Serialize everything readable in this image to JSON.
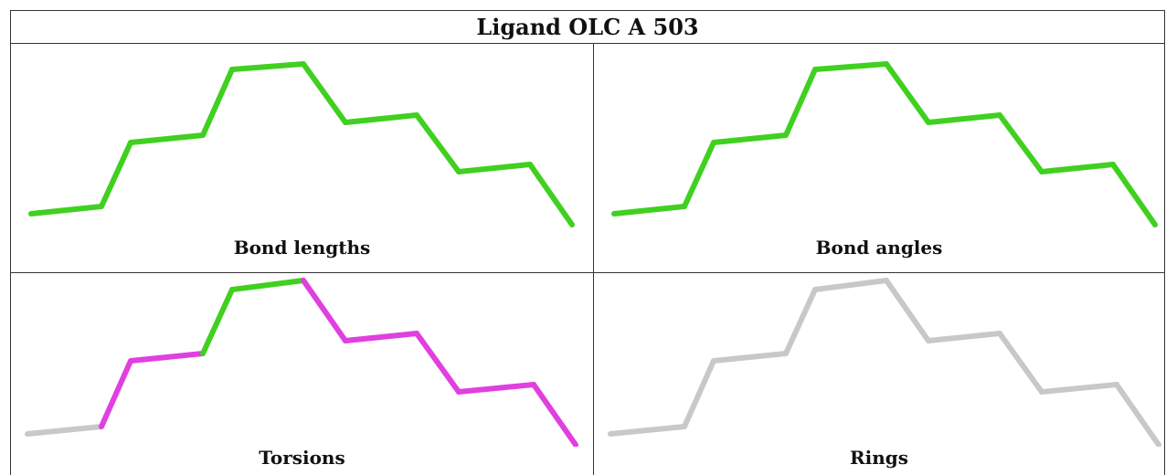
{
  "title": "Ligand OLC A 503",
  "panels": [
    {
      "label": "Bond lengths",
      "bond_colors": [
        "#40d020",
        "#40d020",
        "#40d020",
        "#40d020",
        "#40d020",
        "#40d020",
        "#40d020",
        "#40d020",
        "#40d020",
        "#40d020",
        "#40d020",
        "#40d020"
      ]
    },
    {
      "label": "Bond angles",
      "bond_colors": [
        "#40d020",
        "#40d020",
        "#40d020",
        "#40d020",
        "#40d020",
        "#40d020",
        "#40d020",
        "#40d020",
        "#40d020",
        "#40d020",
        "#40d020",
        "#40d020"
      ]
    },
    {
      "label": "Torsions",
      "bond_colors": [
        "#c8c8c8",
        "#e040e0",
        "#e040e0",
        "#40d020",
        "#40d020",
        "#e040e0",
        "#e040e0",
        "#e040e0",
        "#e040e0",
        "#e040e0",
        "#c8c8c8"
      ]
    },
    {
      "label": "Rings",
      "bond_colors": [
        "#c8c8c8",
        "#c8c8c8",
        "#c8c8c8",
        "#c8c8c8",
        "#c8c8c8",
        "#c8c8c8",
        "#c8c8c8",
        "#c8c8c8",
        "#c8c8c8",
        "#c8c8c8",
        "#c8c8c8"
      ]
    }
  ]
}
